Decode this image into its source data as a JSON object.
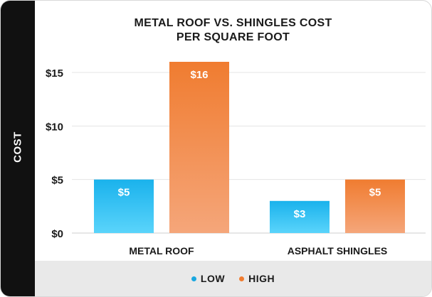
{
  "chart_data": {
    "type": "bar",
    "title_lines": [
      "METAL ROOF VS. SHINGLES COST",
      "PER SQUARE FOOT"
    ],
    "xlabel": "",
    "ylabel": "COST",
    "categories": [
      "METAL ROOF",
      "ASPHALT SHINGLES"
    ],
    "series": [
      {
        "name": "LOW",
        "values": [
          5,
          3
        ],
        "labels": [
          "$5",
          "$3"
        ],
        "color_top": "#1ab2ec",
        "color_bottom": "#5ad4fb"
      },
      {
        "name": "HIGH",
        "values": [
          16,
          5
        ],
        "labels": [
          "$16",
          "$5"
        ],
        "color_top": "#f07c30",
        "color_bottom": "#f5a67a"
      }
    ],
    "ylim": [
      0,
      15
    ],
    "yticks": [
      0,
      5,
      10,
      15
    ],
    "ytick_labels": [
      "$0",
      "$5",
      "$10",
      "$15"
    ],
    "grid": true,
    "legend": "bottom"
  },
  "legend_colors": {
    "LOW": "#1aa8e0",
    "HIGH": "#f07c30"
  }
}
